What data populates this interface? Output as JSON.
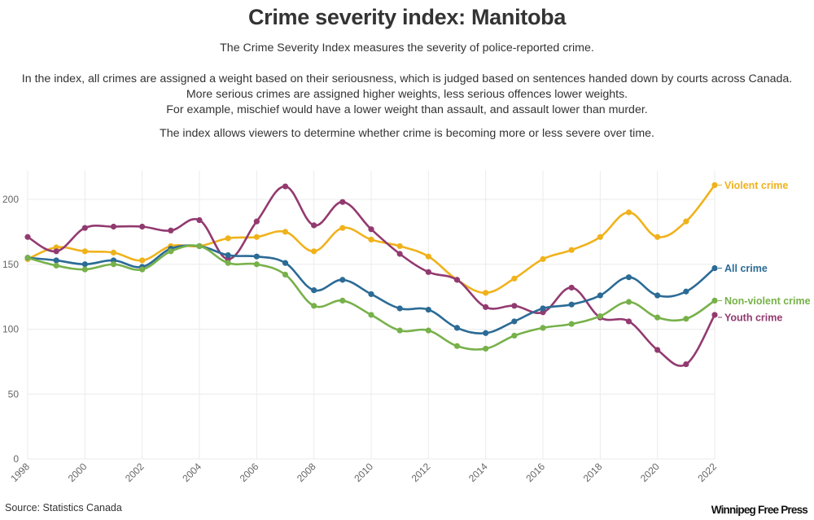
{
  "title": "Crime severity index: Manitoba",
  "description": {
    "line1": "The Crime Severity Index measures the severity of police-reported crime.",
    "para2": [
      "In the index, all crimes are assigned a weight based on their seriousness, which is judged based on sentences handed down by courts across Canada.",
      "More serious crimes are assigned higher weights, less serious offences lower weights.",
      "For example, mischief would have a lower weight than assault, and assault lower than murder."
    ],
    "line3": "The index allows viewers to determine whether crime is becoming more or less severe over time."
  },
  "source": "Source: Statistics Canada",
  "logo": "Winnipeg Free Press",
  "chart_data": {
    "type": "line",
    "title": "Crime severity index: Manitoba",
    "xlabel": "",
    "ylabel": "",
    "x": [
      1998,
      1999,
      2000,
      2001,
      2002,
      2003,
      2004,
      2005,
      2006,
      2007,
      2008,
      2009,
      2010,
      2011,
      2012,
      2013,
      2014,
      2015,
      2016,
      2017,
      2018,
      2019,
      2020,
      2021,
      2022
    ],
    "xticks": [
      "1998",
      "2000",
      "2002",
      "2004",
      "2006",
      "2008",
      "2010",
      "2012",
      "2014",
      "2016",
      "2018",
      "2020",
      "2022"
    ],
    "yticks": [
      "0",
      "50",
      "100",
      "150",
      "200"
    ],
    "ylim": [
      0,
      222
    ],
    "xlim": [
      1998,
      2022
    ],
    "grid": true,
    "legend": "direct labels at right end of lines",
    "series": [
      {
        "name": "Violent crime",
        "color": "#f0b21b",
        "values": [
          154,
          163,
          160,
          159,
          153,
          164,
          164,
          170,
          171,
          175,
          160,
          178,
          169,
          164,
          156,
          138,
          128,
          139,
          154,
          161,
          171,
          190,
          171,
          183,
          211
        ]
      },
      {
        "name": "All crime",
        "color": "#2b6b96",
        "values": [
          155,
          153,
          150,
          153,
          148,
          162,
          164,
          157,
          156,
          151,
          130,
          138,
          127,
          116,
          115,
          101,
          97,
          106,
          116,
          119,
          126,
          140,
          126,
          129,
          147
        ]
      },
      {
        "name": "Non-violent crime",
        "color": "#77b14a",
        "values": [
          155,
          149,
          146,
          150,
          146,
          160,
          164,
          151,
          150,
          142,
          118,
          122,
          111,
          99,
          99,
          87,
          85,
          95,
          101,
          104,
          110,
          121,
          109,
          108,
          122
        ]
      },
      {
        "name": "Youth crime",
        "color": "#923a70",
        "values": [
          171,
          160,
          178,
          179,
          179,
          176,
          184,
          154,
          183,
          210,
          180,
          198,
          177,
          158,
          144,
          138,
          117,
          118,
          113,
          132,
          109,
          106,
          84,
          73,
          111
        ]
      }
    ]
  }
}
